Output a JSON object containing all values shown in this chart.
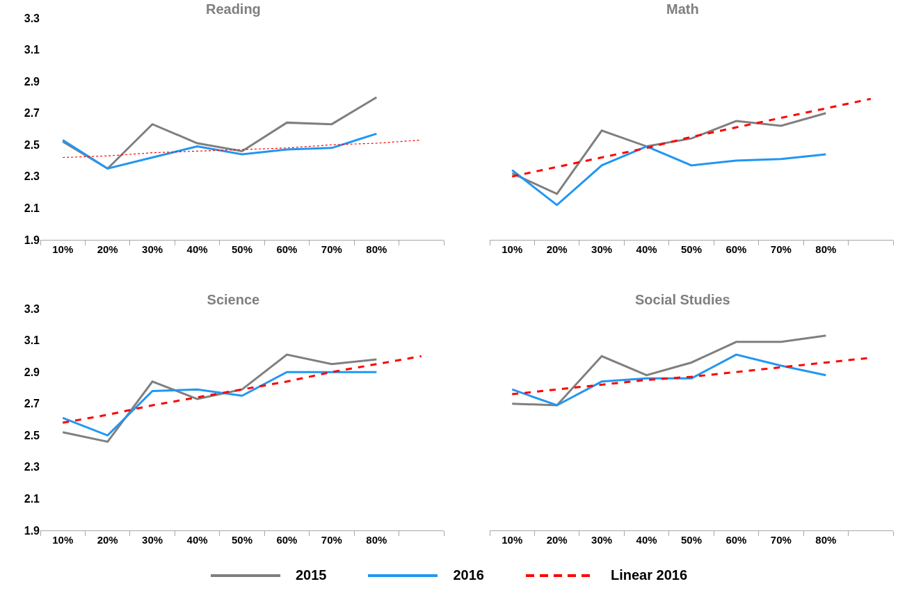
{
  "chart_data": [
    {
      "type": "line",
      "title": "Reading",
      "categories": [
        "10%",
        "20%",
        "30%",
        "40%",
        "50%",
        "60%",
        "70%",
        "80%",
        null
      ],
      "ylim": [
        1.9,
        3.3
      ],
      "yticks": [
        1.9,
        2.1,
        2.3,
        2.5,
        2.7,
        2.9,
        3.1,
        3.3
      ],
      "grid": false,
      "line_style": "solid",
      "legend": "bottom",
      "series": [
        {
          "name": "2015",
          "color": "#7f7f7f",
          "values": [
            2.52,
            2.35,
            2.63,
            2.51,
            2.46,
            2.64,
            2.63,
            2.8,
            null
          ]
        },
        {
          "name": "2016",
          "color": "#2196f3",
          "values": [
            2.53,
            2.35,
            2.42,
            2.49,
            2.44,
            2.47,
            2.48,
            2.57,
            null
          ]
        },
        {
          "name": "Linear 2016",
          "color": "#ff0000",
          "line_style": "dotted",
          "values": [
            2.42,
            2.43,
            2.45,
            2.46,
            2.47,
            2.48,
            2.5,
            2.51,
            2.53
          ]
        }
      ]
    },
    {
      "type": "line",
      "title": "Math",
      "categories": [
        "10%",
        "20%",
        "30%",
        "40%",
        "50%",
        "60%",
        "70%",
        "80%",
        null
      ],
      "ylim": [
        1.9,
        3.3
      ],
      "yticks": [
        1.9,
        2.1,
        2.3,
        2.5,
        2.7,
        2.9,
        3.1,
        3.3
      ],
      "tick_labels": "x",
      "grid": false,
      "line_style": "solid",
      "series": [
        {
          "name": "2015",
          "color": "#7f7f7f",
          "values": [
            2.32,
            2.19,
            2.59,
            2.49,
            2.54,
            2.65,
            2.62,
            2.7,
            null
          ]
        },
        {
          "name": "2016",
          "color": "#2196f3",
          "values": [
            2.34,
            2.12,
            2.37,
            2.49,
            2.37,
            2.4,
            2.41,
            2.44,
            null
          ]
        },
        {
          "name": "Linear 2016",
          "color": "#ff0000",
          "line_style": "dashed",
          "values": [
            2.3,
            2.36,
            2.42,
            2.48,
            2.55,
            2.61,
            2.67,
            2.73,
            2.79
          ]
        }
      ]
    },
    {
      "type": "line",
      "title": "Science",
      "categories": [
        "10%",
        "20%",
        "30%",
        "40%",
        "50%",
        "60%",
        "70%",
        "80%",
        null
      ],
      "ylim": [
        1.9,
        3.3
      ],
      "yticks": [
        1.9,
        2.1,
        2.3,
        2.5,
        2.7,
        2.9,
        3.1,
        3.3
      ],
      "grid": false,
      "line_style": "solid",
      "series": [
        {
          "name": "2015",
          "color": "#7f7f7f",
          "values": [
            2.52,
            2.46,
            2.84,
            2.73,
            2.79,
            3.01,
            2.95,
            2.98,
            null
          ]
        },
        {
          "name": "2016",
          "color": "#2196f3",
          "values": [
            2.61,
            2.5,
            2.78,
            2.79,
            2.75,
            2.9,
            2.9,
            2.9,
            null
          ]
        },
        {
          "name": "Linear 2016",
          "color": "#ff0000",
          "line_style": "dashed",
          "values": [
            2.58,
            2.63,
            2.69,
            2.74,
            2.79,
            2.84,
            2.9,
            2.95,
            3.0
          ]
        }
      ]
    },
    {
      "type": "line",
      "title": "Social Studies",
      "categories": [
        "10%",
        "20%",
        "30%",
        "40%",
        "50%",
        "60%",
        "70%",
        "80%",
        null
      ],
      "ylim": [
        1.9,
        3.3
      ],
      "yticks": [
        1.9,
        2.1,
        2.3,
        2.5,
        2.7,
        2.9,
        3.1,
        3.3
      ],
      "tick_labels": "x",
      "grid": false,
      "line_style": "solid",
      "series": [
        {
          "name": "2015",
          "color": "#7f7f7f",
          "values": [
            2.7,
            2.69,
            3.0,
            2.88,
            2.96,
            3.09,
            3.09,
            3.13,
            null
          ]
        },
        {
          "name": "2016",
          "color": "#2196f3",
          "values": [
            2.79,
            2.69,
            2.84,
            2.86,
            2.86,
            3.01,
            2.94,
            2.88,
            null
          ]
        },
        {
          "name": "Linear 2016",
          "color": "#ff0000",
          "line_style": "dashed",
          "values": [
            2.76,
            2.79,
            2.82,
            2.85,
            2.87,
            2.9,
            2.93,
            2.96,
            2.99
          ]
        }
      ]
    }
  ]
}
